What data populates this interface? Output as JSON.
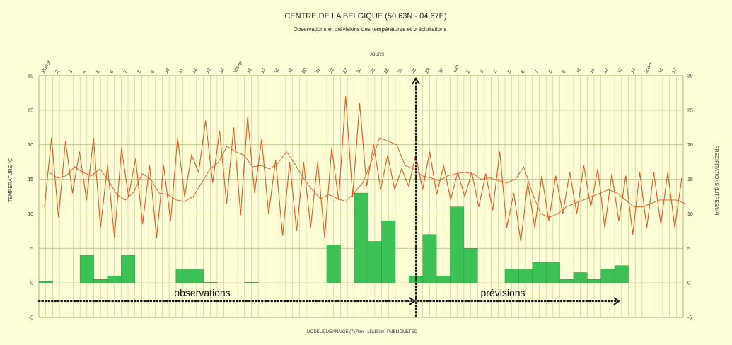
{
  "chart_data": {
    "type": "bar+line",
    "title": "CENTRE DE LA BELGIQUE (50,63N - 04,67E)",
    "subtitle": "Observations et prévisions des températures et précipitations",
    "top_axis_label": "JOURS",
    "ylabel_left": "TEMPERATURE °C",
    "ylabel_right": "PRECIPITATIONS (LITRES/M²)",
    "footer": "MODELE MEANAIGE (7x7km - 15x15km) PUBLICMETEO",
    "ylim": [
      -5,
      30
    ],
    "y_ticks": [
      -5,
      0,
      5,
      10,
      15,
      20,
      25,
      30
    ],
    "grid": true,
    "colors": {
      "background": "#fdfdd7",
      "grid": "#c9c98a",
      "temperature": "#e4571e",
      "precipitation": "#3cc156",
      "precipitation_edge": "#2a9a40",
      "annotation": "#111111"
    },
    "day_labels": [
      "15sept",
      "2",
      "3",
      "4",
      "5",
      "6",
      "7",
      "8",
      "9",
      "10",
      "11",
      "12",
      "13",
      "14",
      "15sept",
      "16",
      "17",
      "18",
      "19",
      "20",
      "21",
      "22",
      "23",
      "24",
      "25",
      "26",
      "27",
      "28",
      "29",
      "30",
      "1oct",
      "2",
      "3",
      "4",
      "5",
      "6",
      "7",
      "8",
      "9",
      "10",
      "11",
      "12",
      "13",
      "14",
      "15oct",
      "16",
      "17"
    ],
    "temperature_series": {
      "name": "",
      "values": [
        11,
        21,
        9.5,
        20.5,
        13,
        19,
        12,
        21,
        8,
        17,
        6.5,
        19.5,
        12.5,
        18,
        8.5,
        17,
        6.5,
        17,
        9,
        21,
        12.5,
        18.5,
        16,
        23.5,
        14.5,
        22,
        11.5,
        22.5,
        9.8,
        24,
        13,
        20.8,
        10,
        17.8,
        6.8,
        17.5,
        7.5,
        17.5,
        8,
        17.5,
        6.5,
        19.5,
        12,
        27,
        12.5,
        26,
        14,
        20,
        13.5,
        18.5,
        13.5,
        16.5,
        14,
        18.5,
        13.5,
        19,
        12.8,
        17,
        12,
        16,
        12.5,
        16,
        11,
        15.8,
        10.5,
        19,
        8,
        13,
        6,
        14.5,
        8,
        15.5,
        9,
        15.5,
        10,
        16,
        10,
        17,
        11,
        16.5,
        8,
        15.8,
        9,
        15.5,
        7,
        16,
        8,
        16,
        8.5,
        16,
        8,
        15.2
      ]
    },
    "temperature_trend": {
      "name": "",
      "values": [
        16,
        15.2,
        15.5,
        16.8,
        16,
        15.5,
        16.5,
        14.8,
        12.8,
        12,
        13.2,
        15.8,
        15,
        13,
        12.8,
        12,
        11.8,
        12.5,
        14.5,
        16.5,
        17.5,
        19.8,
        19,
        18.5,
        16.8,
        17,
        16.5,
        17.3,
        19,
        17.2,
        15.2,
        13.5,
        12.2,
        12.8,
        12.2,
        11.8,
        13,
        14.5,
        17.5,
        21,
        20.5,
        20,
        17,
        16.5,
        15.5,
        15.2,
        14.8,
        15.5,
        15.8,
        16,
        15.8,
        15,
        15.2,
        14.8,
        14.5,
        15,
        16.8,
        13,
        10,
        9.5,
        10,
        11,
        11.5,
        12,
        12.5,
        13,
        13.5,
        13,
        12,
        11,
        11,
        11.5,
        12,
        12,
        12,
        11.5
      ]
    },
    "precipitation": {
      "name": "",
      "values": [
        0.2,
        0,
        0,
        4,
        0.5,
        1,
        4,
        0,
        0,
        0,
        2,
        2,
        0.1,
        0,
        0,
        0.1,
        0,
        0,
        0,
        0,
        0,
        5.5,
        0,
        13,
        6,
        9,
        0,
        1,
        7,
        1,
        11,
        5,
        0,
        0,
        2,
        2,
        3,
        3,
        0.5,
        1.5,
        0.5,
        2,
        2.5,
        0,
        0,
        0,
        0
      ]
    },
    "annotations": [
      {
        "text": "observations"
      },
      {
        "text": "prévisions"
      }
    ]
  }
}
